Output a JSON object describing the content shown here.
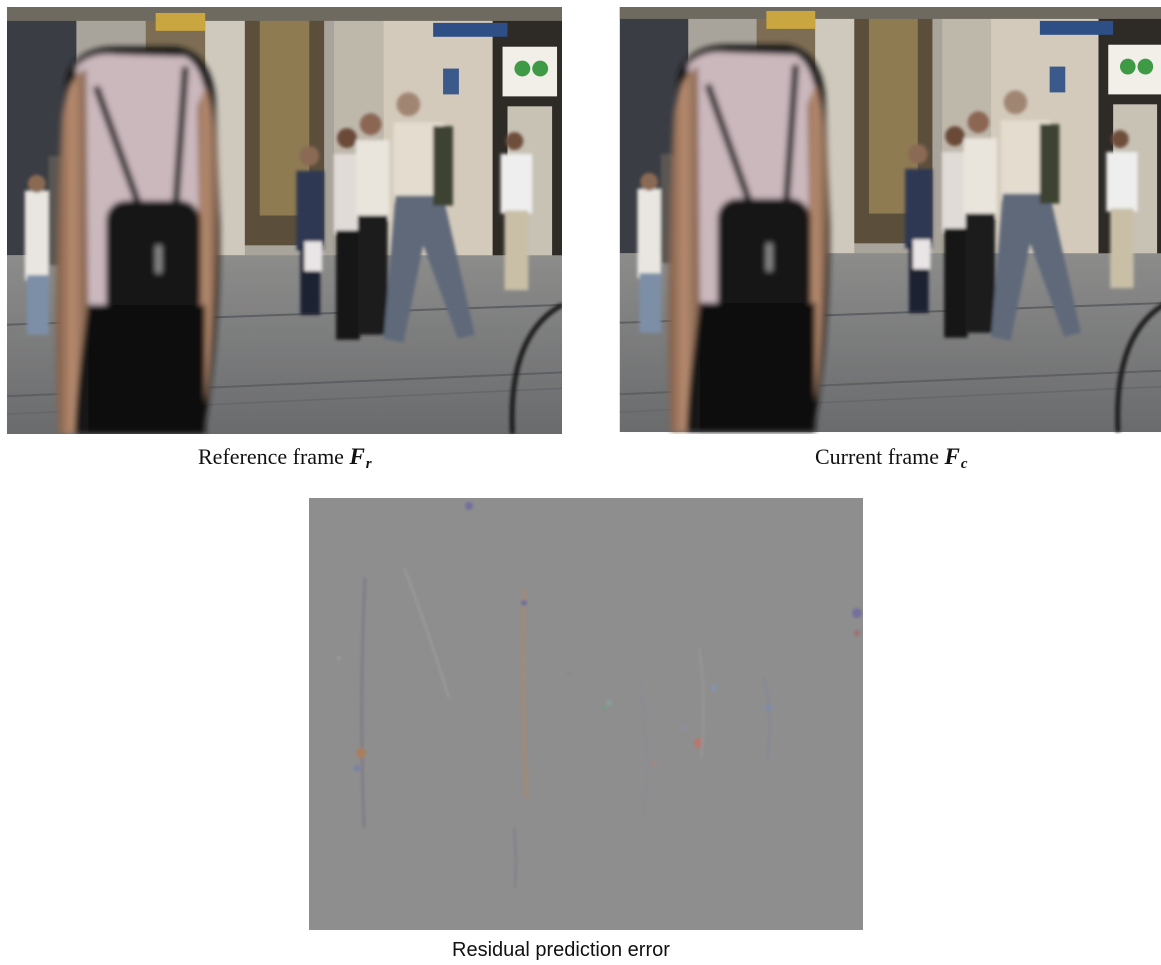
{
  "figure": {
    "reference": {
      "caption": "Reference frame",
      "symbol": "F",
      "subscript": "r"
    },
    "current": {
      "caption": "Current frame",
      "symbol": "F",
      "subscript": "c"
    },
    "residual": {
      "caption": "Residual prediction error"
    },
    "colors": {
      "residual_gray": "#8e8e8e",
      "pavement": "#77787a",
      "wall": "#b9b4ab"
    }
  }
}
